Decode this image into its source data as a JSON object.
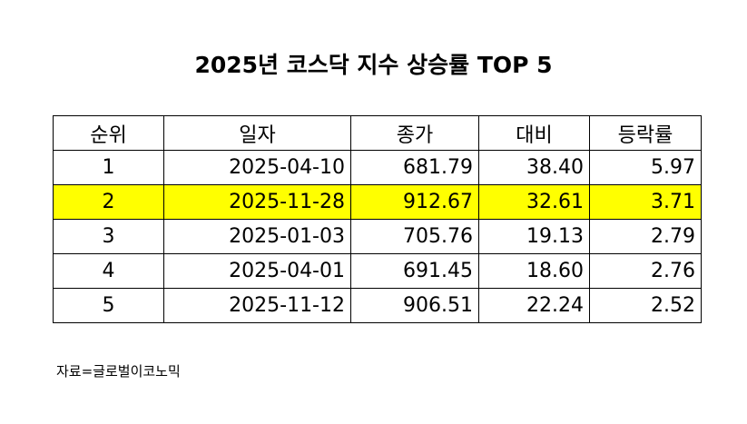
{
  "title": "2025년 코스닥 지수 상승률 TOP 5",
  "highlight_color": "#ffff00",
  "table": {
    "headers": [
      "순위",
      "일자",
      "종가",
      "대비",
      "등락률"
    ],
    "rows": [
      {
        "rank": "1",
        "date": "2025-04-10",
        "close": "681.79",
        "change": "38.40",
        "rate": "5.97",
        "highlighted": false
      },
      {
        "rank": "2",
        "date": "2025-11-28",
        "close": "912.67",
        "change": "32.61",
        "rate": "3.71",
        "highlighted": true
      },
      {
        "rank": "3",
        "date": "2025-01-03",
        "close": "705.76",
        "change": "19.13",
        "rate": "2.79",
        "highlighted": false
      },
      {
        "rank": "4",
        "date": "2025-04-01",
        "close": "691.45",
        "change": "18.60",
        "rate": "2.76",
        "highlighted": false
      },
      {
        "rank": "5",
        "date": "2025-11-12",
        "close": "906.51",
        "change": "22.24",
        "rate": "2.52",
        "highlighted": false
      }
    ]
  },
  "source": "자료=글로벌이코노믹"
}
